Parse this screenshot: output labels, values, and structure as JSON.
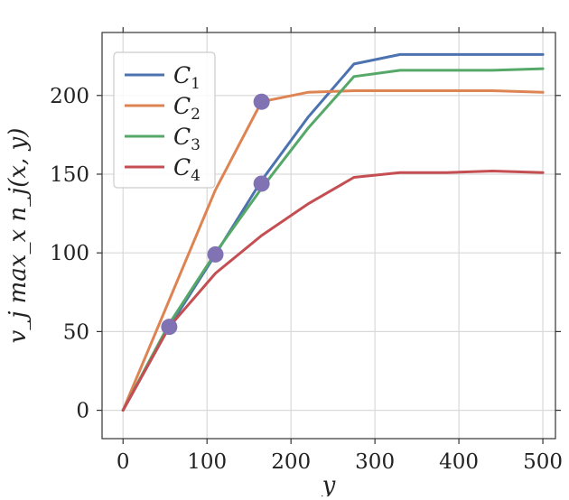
{
  "chart_data": {
    "type": "line",
    "title": "",
    "xlabel": "y",
    "ylabel": "v_j max_x n_j(x, y)",
    "xlim": [
      -25,
      515
    ],
    "ylim": [
      -18,
      240
    ],
    "xticks": [
      0,
      100,
      200,
      300,
      400,
      500
    ],
    "yticks": [
      0,
      50,
      100,
      150,
      200
    ],
    "grid": true,
    "legend_position": "top-left",
    "series": [
      {
        "name": "C1",
        "color": "#4c72b0",
        "x": [
          0,
          55,
          110,
          165,
          220,
          275,
          330,
          385,
          440,
          500
        ],
        "y": [
          0,
          53,
          99,
          146,
          186,
          220,
          226,
          226,
          226,
          226
        ]
      },
      {
        "name": "C2",
        "color": "#dd8452",
        "x": [
          0,
          55,
          110,
          165,
          220,
          275,
          330,
          385,
          440,
          500
        ],
        "y": [
          0,
          70,
          140,
          196,
          202,
          203,
          203,
          203,
          203,
          202
        ]
      },
      {
        "name": "C3",
        "color": "#55a868",
        "x": [
          0,
          55,
          110,
          165,
          220,
          275,
          330,
          385,
          440,
          500
        ],
        "y": [
          0,
          55,
          100,
          141,
          179,
          212,
          216,
          216,
          216,
          217
        ]
      },
      {
        "name": "C4",
        "color": "#c44e52",
        "x": [
          0,
          55,
          110,
          165,
          220,
          275,
          330,
          385,
          440,
          500
        ],
        "y": [
          0,
          53,
          87,
          111,
          131,
          148,
          151,
          151,
          152,
          151
        ]
      }
    ],
    "markers": {
      "color": "#8172b3",
      "points": [
        {
          "x": 55,
          "y": 53
        },
        {
          "x": 110,
          "y": 99
        },
        {
          "x": 165,
          "y": 144
        },
        {
          "x": 165,
          "y": 196
        }
      ]
    }
  }
}
